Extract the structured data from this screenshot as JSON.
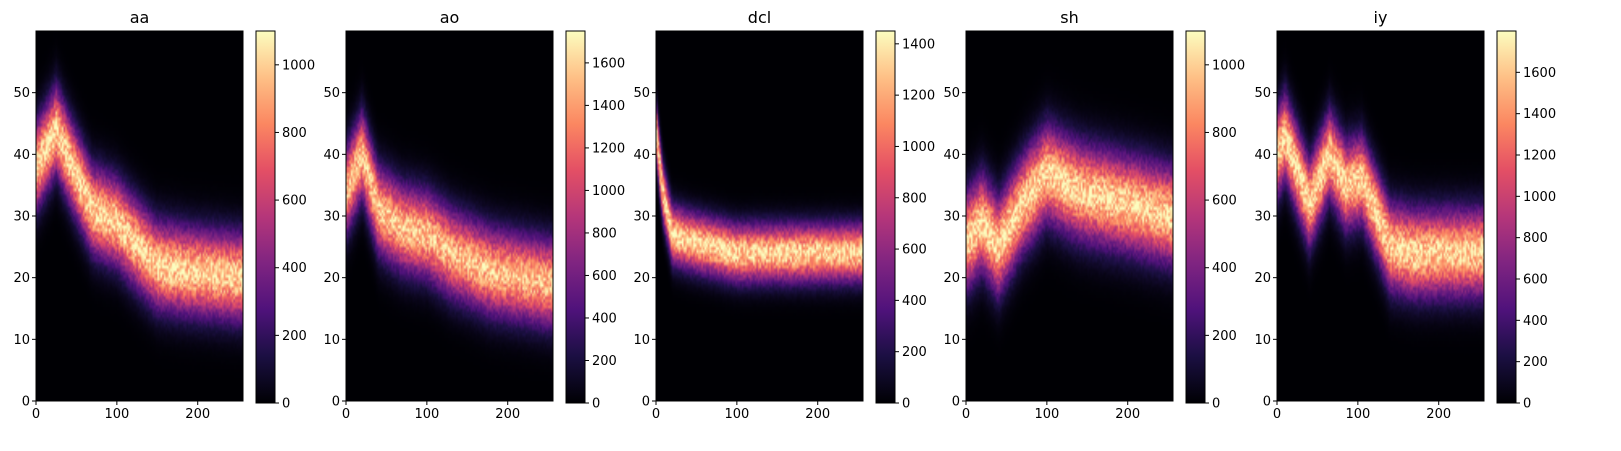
{
  "chart_data": [
    {
      "type": "heatmap",
      "title": "aa",
      "xlabel": "",
      "ylabel": "",
      "xlim": [
        0,
        256
      ],
      "ylim": [
        0,
        60
      ],
      "x_ticks": [
        "0",
        "100",
        "200"
      ],
      "y_ticks": [
        "0",
        "10",
        "20",
        "30",
        "40",
        "50"
      ],
      "colormap": "magma",
      "colorbar": {
        "range": [
          0,
          1100
        ],
        "ticks": [
          "0",
          "200",
          "400",
          "600",
          "800",
          "1000"
        ]
      },
      "ridge": {
        "x": [
          0,
          25,
          45,
          70,
          100,
          120,
          150,
          190,
          256
        ],
        "y": [
          38,
          44,
          38,
          31,
          29,
          26,
          22,
          21,
          20
        ]
      },
      "spread": 4.5,
      "peak": 1.0
    },
    {
      "type": "heatmap",
      "title": "ao",
      "xlabel": "",
      "ylabel": "",
      "xlim": [
        0,
        256
      ],
      "ylim": [
        0,
        60
      ],
      "x_ticks": [
        "0",
        "100",
        "200"
      ],
      "y_ticks": [
        "0",
        "10",
        "20",
        "30",
        "40",
        "50"
      ],
      "colormap": "magma",
      "colorbar": {
        "range": [
          0,
          1750
        ],
        "ticks": [
          "0",
          "200",
          "400",
          "600",
          "800",
          "1000",
          "1200",
          "1400",
          "1600"
        ]
      },
      "ridge": {
        "x": [
          0,
          20,
          40,
          70,
          100,
          130,
          180,
          256
        ],
        "y": [
          34,
          40,
          31,
          28,
          27,
          24,
          21,
          19
        ]
      },
      "spread": 4.5,
      "peak": 0.95
    },
    {
      "type": "heatmap",
      "title": "dcl",
      "xlabel": "",
      "ylabel": "",
      "xlim": [
        0,
        256
      ],
      "ylim": [
        0,
        60
      ],
      "x_ticks": [
        "0",
        "100",
        "200"
      ],
      "y_ticks": [
        "0",
        "10",
        "20",
        "30",
        "40",
        "50"
      ],
      "colormap": "magma",
      "colorbar": {
        "range": [
          0,
          1450
        ],
        "ticks": [
          "0",
          "200",
          "400",
          "600",
          "800",
          "1000",
          "1200",
          "1400"
        ]
      },
      "ridge": {
        "x": [
          0,
          8,
          20,
          40,
          70,
          100,
          150,
          256
        ],
        "y": [
          44,
          34,
          27,
          26,
          25,
          24,
          24,
          24
        ]
      },
      "spread": 3.0,
      "peak": 1.0
    },
    {
      "type": "heatmap",
      "title": "sh",
      "xlabel": "",
      "ylabel": "",
      "xlim": [
        0,
        256
      ],
      "ylim": [
        0,
        60
      ],
      "x_ticks": [
        "0",
        "100",
        "200"
      ],
      "y_ticks": [
        "0",
        "10",
        "20",
        "30",
        "40",
        "50"
      ],
      "colormap": "magma",
      "colorbar": {
        "range": [
          0,
          1100
        ],
        "ticks": [
          "0",
          "200",
          "400",
          "600",
          "800",
          "1000"
        ]
      },
      "ridge": {
        "x": [
          0,
          20,
          40,
          70,
          100,
          140,
          200,
          256
        ],
        "y": [
          26,
          29,
          25,
          32,
          37,
          34,
          32,
          30
        ]
      },
      "spread": 5.0,
      "peak": 1.0
    },
    {
      "type": "heatmap",
      "title": "iy",
      "xlabel": "",
      "ylabel": "",
      "xlim": [
        0,
        256
      ],
      "ylim": [
        0,
        60
      ],
      "x_ticks": [
        "0",
        "100",
        "200"
      ],
      "y_ticks": [
        "0",
        "10",
        "20",
        "30",
        "40",
        "50"
      ],
      "colormap": "magma",
      "colorbar": {
        "range": [
          0,
          1800
        ],
        "ticks": [
          "0",
          "200",
          "400",
          "600",
          "800",
          "1000",
          "1200",
          "1400",
          "1600"
        ]
      },
      "ridge": {
        "x": [
          0,
          10,
          40,
          65,
          85,
          105,
          140,
          170,
          256
        ],
        "y": [
          40,
          43,
          32,
          40,
          35,
          36,
          25,
          24,
          24
        ]
      },
      "spread": 4.5,
      "peak": 1.0
    }
  ]
}
